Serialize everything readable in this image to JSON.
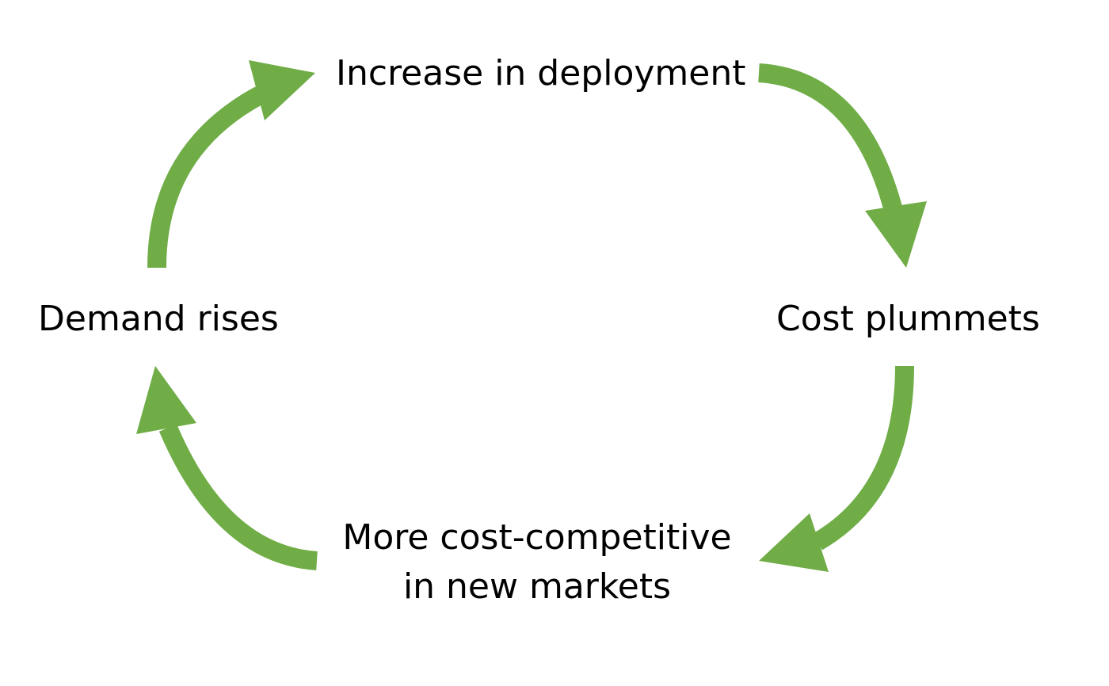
{
  "diagram": {
    "accent_color": "#70ad47",
    "nodes": {
      "top": "Increase in deployment",
      "right": "Cost plummets",
      "bottom_line1": "More cost-competitive",
      "bottom_line2": "in new markets",
      "left": "Demand rises"
    },
    "edges": [
      {
        "from": "top",
        "to": "right"
      },
      {
        "from": "right",
        "to": "bottom"
      },
      {
        "from": "bottom",
        "to": "left"
      },
      {
        "from": "left",
        "to": "top"
      }
    ]
  }
}
